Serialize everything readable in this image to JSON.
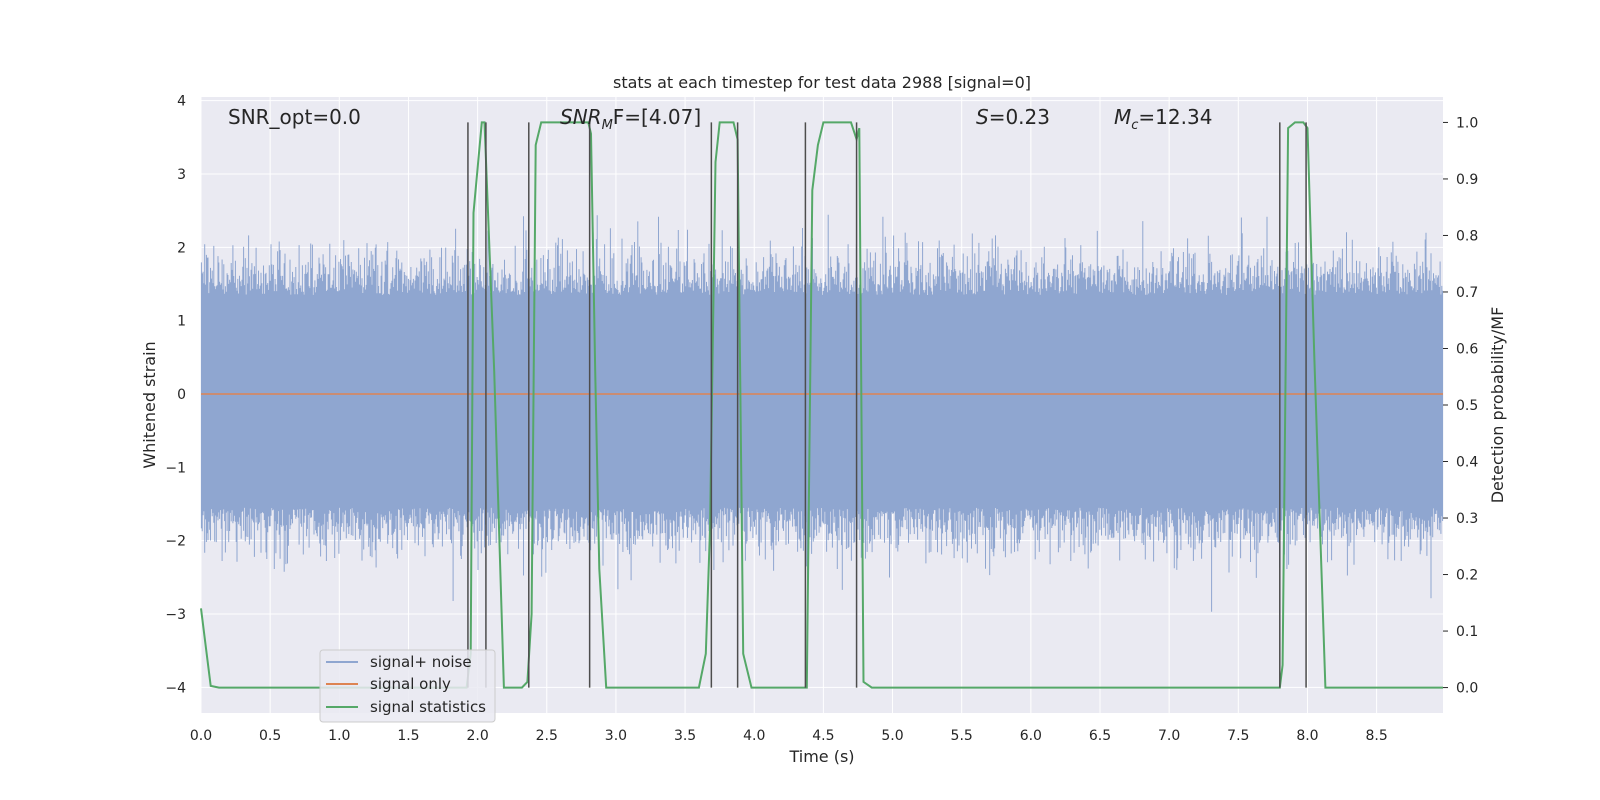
{
  "chart_data": {
    "type": "line",
    "title": "stats at each timestep for test data 2988 [signal=0]",
    "xlabel": "Time (s)",
    "ylabel_left": "Whitened strain",
    "ylabel_right": "Detection probability/MF",
    "xlim": [
      0.0,
      8.98
    ],
    "ylim_left": [
      -4.35,
      4.05
    ],
    "ylim_right": [
      -0.045,
      1.045
    ],
    "xticks": [
      "0.0",
      "0.5",
      "1.0",
      "1.5",
      "2.0",
      "2.5",
      "3.0",
      "3.5",
      "4.0",
      "4.5",
      "5.0",
      "5.5",
      "6.0",
      "6.5",
      "7.0",
      "7.5",
      "8.0",
      "8.5"
    ],
    "yticks_left": [
      "4",
      "3",
      "2",
      "1",
      "0",
      "−1",
      "−2",
      "−3",
      "−4"
    ],
    "yticks_right": [
      "1.0",
      "0.9",
      "0.8",
      "0.7",
      "0.6",
      "0.5",
      "0.4",
      "0.3",
      "0.2",
      "0.1",
      "0.0"
    ],
    "grid": true,
    "legend_position": "lower-left",
    "annotations": {
      "snr_opt": "SNR_opt=0.0",
      "snr_mf_base": "SNR",
      "snr_mf_sub": "M",
      "snr_mf_tail": "F=[4.07]",
      "s_italic": "S",
      "s_value": "=0.23",
      "mc_base": "M",
      "mc_sub": "c",
      "mc_value": "=12.34"
    },
    "series": [
      {
        "name": "signal+ noise",
        "color": "#8fa6d0",
        "style": "noise band, whitened strain roughly within ±3"
      },
      {
        "name": "signal only",
        "color": "#dd8452",
        "x": [
          0.0,
          8.98
        ],
        "y": [
          0.0,
          0.0
        ]
      },
      {
        "name": "signal statistics",
        "color": "#55a868",
        "axis": "right",
        "x": [
          0.0,
          0.07,
          0.13,
          1.92,
          1.95,
          1.97,
          2.03,
          2.05,
          2.12,
          2.19,
          2.32,
          2.36,
          2.39,
          2.42,
          2.46,
          2.8,
          2.82,
          2.85,
          2.88,
          2.93,
          3.6,
          3.65,
          3.68,
          3.72,
          3.75,
          3.85,
          3.88,
          3.92,
          3.98,
          4.38,
          4.42,
          4.46,
          4.5,
          4.7,
          4.74,
          4.76,
          4.79,
          4.85,
          7.8,
          7.82,
          7.86,
          7.91,
          7.97,
          8.0,
          8.05,
          8.13,
          8.19,
          8.98
        ],
        "y": [
          0.14,
          0.003,
          0.0,
          0.0,
          0.06,
          0.84,
          1.0,
          1.0,
          0.56,
          0.0,
          0.0,
          0.01,
          0.13,
          0.96,
          1.0,
          1.0,
          0.98,
          0.56,
          0.21,
          0.0,
          0.0,
          0.06,
          0.28,
          0.93,
          1.0,
          1.0,
          0.97,
          0.06,
          0.0,
          0.0,
          0.88,
          0.96,
          1.0,
          1.0,
          0.97,
          0.99,
          0.01,
          0.0,
          0.0,
          0.04,
          0.99,
          1.0,
          1.0,
          0.99,
          0.58,
          0.0,
          0.0,
          0.0
        ]
      }
    ],
    "vertical_markers_x": [
      1.93,
      2.06,
      2.37,
      2.81,
      3.69,
      3.88,
      4.37,
      4.74,
      7.8,
      7.99
    ],
    "marker_color": "#4d4d4d"
  }
}
